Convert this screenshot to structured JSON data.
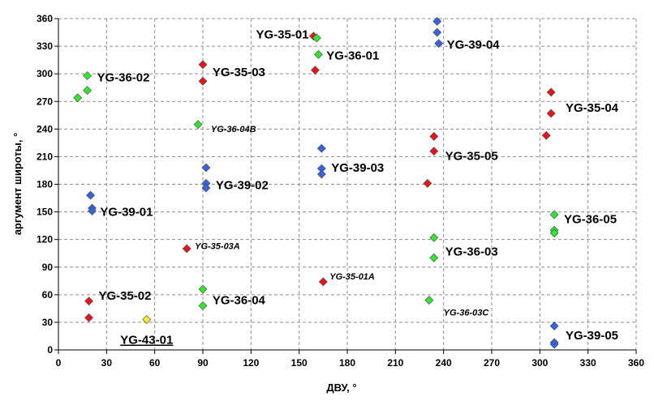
{
  "chart_data": {
    "type": "scatter",
    "title": "",
    "xlabel": "ДВУ, °",
    "ylabel": "аргумент широты, °",
    "xlim": [
      0,
      360
    ],
    "ylim": [
      0,
      360
    ],
    "xticks": [
      0,
      30,
      60,
      90,
      120,
      150,
      180,
      210,
      240,
      270,
      300,
      330,
      360
    ],
    "yticks": [
      0,
      30,
      60,
      90,
      120,
      150,
      180,
      210,
      240,
      270,
      300,
      330,
      360
    ],
    "grid": true,
    "legend": "none",
    "colors": {
      "red": "#e8141b",
      "green": "#2ee82e",
      "blue": "#3563e0",
      "yellow": "#f5ef2a"
    },
    "points": [
      {
        "x": 159,
        "y": 341,
        "color": "red"
      },
      {
        "x": 161,
        "y": 339,
        "color": "green"
      },
      {
        "x": 162,
        "y": 321,
        "color": "green"
      },
      {
        "x": 160,
        "y": 304,
        "color": "red"
      },
      {
        "x": 236,
        "y": 357,
        "color": "blue"
      },
      {
        "x": 236,
        "y": 345,
        "color": "blue"
      },
      {
        "x": 237,
        "y": 333,
        "color": "blue"
      },
      {
        "x": 18,
        "y": 298,
        "color": "green"
      },
      {
        "x": 18,
        "y": 282,
        "color": "green"
      },
      {
        "x": 12,
        "y": 274,
        "color": "green"
      },
      {
        "x": 90,
        "y": 310,
        "color": "red"
      },
      {
        "x": 90,
        "y": 292,
        "color": "red"
      },
      {
        "x": 307,
        "y": 280,
        "color": "red"
      },
      {
        "x": 307,
        "y": 257,
        "color": "red"
      },
      {
        "x": 304,
        "y": 233,
        "color": "red"
      },
      {
        "x": 87,
        "y": 245,
        "color": "green"
      },
      {
        "x": 234,
        "y": 232,
        "color": "red"
      },
      {
        "x": 234,
        "y": 216,
        "color": "red"
      },
      {
        "x": 230,
        "y": 181,
        "color": "red"
      },
      {
        "x": 164,
        "y": 219,
        "color": "blue"
      },
      {
        "x": 164,
        "y": 197,
        "color": "blue"
      },
      {
        "x": 164,
        "y": 191,
        "color": "blue"
      },
      {
        "x": 92,
        "y": 198,
        "color": "blue"
      },
      {
        "x": 92,
        "y": 181,
        "color": "blue"
      },
      {
        "x": 92,
        "y": 176,
        "color": "blue"
      },
      {
        "x": 20,
        "y": 168,
        "color": "blue"
      },
      {
        "x": 21,
        "y": 154,
        "color": "blue"
      },
      {
        "x": 21,
        "y": 151,
        "color": "blue"
      },
      {
        "x": 309,
        "y": 147,
        "color": "green"
      },
      {
        "x": 309,
        "y": 130,
        "color": "green"
      },
      {
        "x": 309,
        "y": 127,
        "color": "green"
      },
      {
        "x": 234,
        "y": 122,
        "color": "green"
      },
      {
        "x": 234,
        "y": 100,
        "color": "green"
      },
      {
        "x": 80,
        "y": 110,
        "color": "red"
      },
      {
        "x": 165,
        "y": 74,
        "color": "red"
      },
      {
        "x": 90,
        "y": 66,
        "color": "green"
      },
      {
        "x": 90,
        "y": 48,
        "color": "green"
      },
      {
        "x": 19,
        "y": 53,
        "color": "red"
      },
      {
        "x": 19,
        "y": 35,
        "color": "red"
      },
      {
        "x": 55,
        "y": 33,
        "color": "yellow"
      },
      {
        "x": 231,
        "y": 54,
        "color": "green"
      },
      {
        "x": 309,
        "y": 26,
        "color": "blue"
      },
      {
        "x": 309,
        "y": 8,
        "color": "blue"
      },
      {
        "x": 309,
        "y": 6,
        "color": "blue"
      }
    ],
    "annotations": [
      {
        "text": "YG-35-01",
        "x": 156,
        "y": 343,
        "anchor": "end",
        "style": "big"
      },
      {
        "text": "YG-36-01",
        "x": 167,
        "y": 320,
        "anchor": "start",
        "style": "big"
      },
      {
        "text": "YG-39-04",
        "x": 242,
        "y": 332,
        "anchor": "start",
        "style": "big"
      },
      {
        "text": "YG-36-02",
        "x": 24,
        "y": 296,
        "anchor": "start",
        "style": "big"
      },
      {
        "text": "YG-35-03",
        "x": 96,
        "y": 302,
        "anchor": "start",
        "style": "big"
      },
      {
        "text": "YG-35-04",
        "x": 316,
        "y": 263,
        "anchor": "start",
        "style": "big"
      },
      {
        "text": "YG-36-04B",
        "x": 95,
        "y": 241,
        "anchor": "start",
        "style": "small"
      },
      {
        "text": "YG-35-05",
        "x": 241,
        "y": 211,
        "anchor": "start",
        "style": "big"
      },
      {
        "text": "YG-39-03",
        "x": 170,
        "y": 198,
        "anchor": "start",
        "style": "big"
      },
      {
        "text": "YG-39-02",
        "x": 98,
        "y": 179,
        "anchor": "start",
        "style": "big"
      },
      {
        "text": "YG-39-01",
        "x": 26,
        "y": 150,
        "anchor": "start",
        "style": "big"
      },
      {
        "text": "YG-36-05",
        "x": 315,
        "y": 142,
        "anchor": "start",
        "style": "big"
      },
      {
        "text": "YG-35-03A",
        "x": 85,
        "y": 114,
        "anchor": "start",
        "style": "small"
      },
      {
        "text": "YG-36-03",
        "x": 241,
        "y": 107,
        "anchor": "start",
        "style": "big"
      },
      {
        "text": "YG-35-01A",
        "x": 169,
        "y": 81,
        "anchor": "start",
        "style": "small"
      },
      {
        "text": "YG-35-02",
        "x": 25,
        "y": 59,
        "anchor": "start",
        "style": "big"
      },
      {
        "text": "YG-36-04",
        "x": 96,
        "y": 54,
        "anchor": "start",
        "style": "big"
      },
      {
        "text": "YG-36-03C",
        "x": 240,
        "y": 42,
        "anchor": "start",
        "style": "small"
      },
      {
        "text": "YG-43-01",
        "x": 55,
        "y": 11,
        "anchor": "middle",
        "style": "big",
        "underline": true
      },
      {
        "text": "YG-39-05",
        "x": 316,
        "y": 16,
        "anchor": "start",
        "style": "big"
      }
    ]
  }
}
